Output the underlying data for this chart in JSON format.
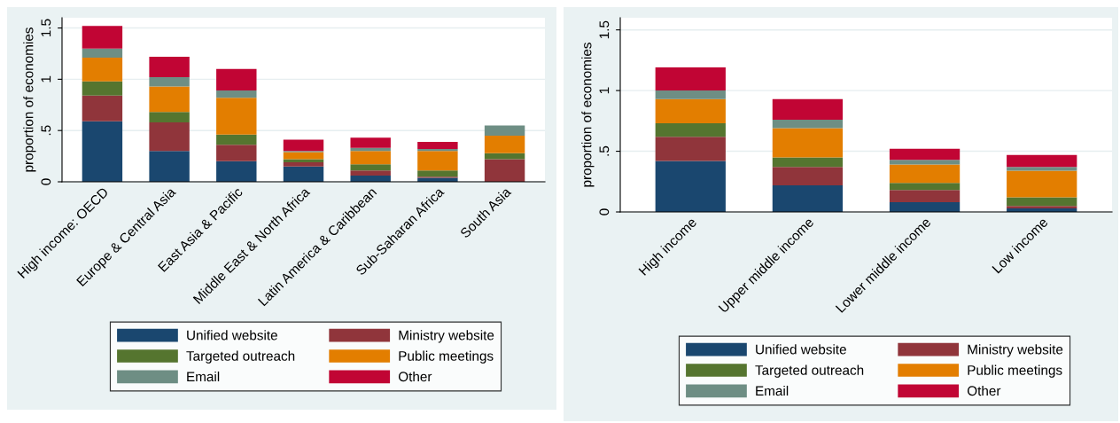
{
  "chart_data": [
    {
      "type": "bar",
      "stacked": true,
      "ylabel": "proportion of economies",
      "categories": [
        "High income: OECD",
        "Europe & Central Asia",
        "East Asia & Pacific",
        "Middle East & North Africa",
        "Latin America & Caribbean",
        "Sub-Saharan Africa",
        "South Asia"
      ],
      "ylim": [
        0,
        1.6
      ],
      "yticks": [
        0,
        {
          "value": 0.5,
          "label": ".5"
        },
        1,
        1.5
      ],
      "grid": "y",
      "legend": "bottom",
      "series": [
        {
          "name": "Unified website",
          "color": "#1a476f",
          "values": [
            0.59,
            0.3,
            0.2,
            0.15,
            0.06,
            0.04,
            0
          ]
        },
        {
          "name": "Ministry website",
          "color": "#90353b",
          "values": [
            0.25,
            0.28,
            0.16,
            0.04,
            0.05,
            0.01,
            0.22
          ]
        },
        {
          "name": "Targeted outreach",
          "color": "#55752f",
          "values": [
            0.14,
            0.1,
            0.1,
            0.03,
            0.06,
            0.06,
            0.06
          ]
        },
        {
          "name": "Public meetings",
          "color": "#e37e00",
          "values": [
            0.23,
            0.25,
            0.36,
            0.07,
            0.13,
            0.19,
            0.17
          ]
        },
        {
          "name": "Email",
          "color": "#6e8e84",
          "values": [
            0.09,
            0.09,
            0.07,
            0.01,
            0.03,
            0.02,
            0.1
          ]
        },
        {
          "name": "Other",
          "color": "#c10534",
          "values": [
            0.22,
            0.2,
            0.21,
            0.11,
            0.1,
            0.07,
            0
          ]
        }
      ]
    },
    {
      "type": "bar",
      "stacked": true,
      "ylabel": "proportion of economies",
      "categories": [
        "High income",
        "Upper middle income",
        "Lower middle income",
        "Low income"
      ],
      "ylim": [
        0,
        1.6
      ],
      "yticks": [
        0,
        {
          "value": 0.5,
          "label": ".5"
        },
        1,
        1.5
      ],
      "grid": "y",
      "legend": "bottom",
      "series": [
        {
          "name": "Unified website",
          "color": "#1a476f",
          "values": [
            0.42,
            0.22,
            0.08,
            0.03
          ]
        },
        {
          "name": "Ministry website",
          "color": "#90353b",
          "values": [
            0.2,
            0.15,
            0.1,
            0.02
          ]
        },
        {
          "name": "Targeted outreach",
          "color": "#55752f",
          "values": [
            0.11,
            0.08,
            0.06,
            0.07
          ]
        },
        {
          "name": "Public meetings",
          "color": "#e37e00",
          "values": [
            0.2,
            0.24,
            0.15,
            0.22
          ]
        },
        {
          "name": "Email",
          "color": "#6e8e84",
          "values": [
            0.07,
            0.07,
            0.04,
            0.03
          ]
        },
        {
          "name": "Other",
          "color": "#c10534",
          "values": [
            0.19,
            0.17,
            0.09,
            0.1
          ]
        }
      ]
    }
  ]
}
